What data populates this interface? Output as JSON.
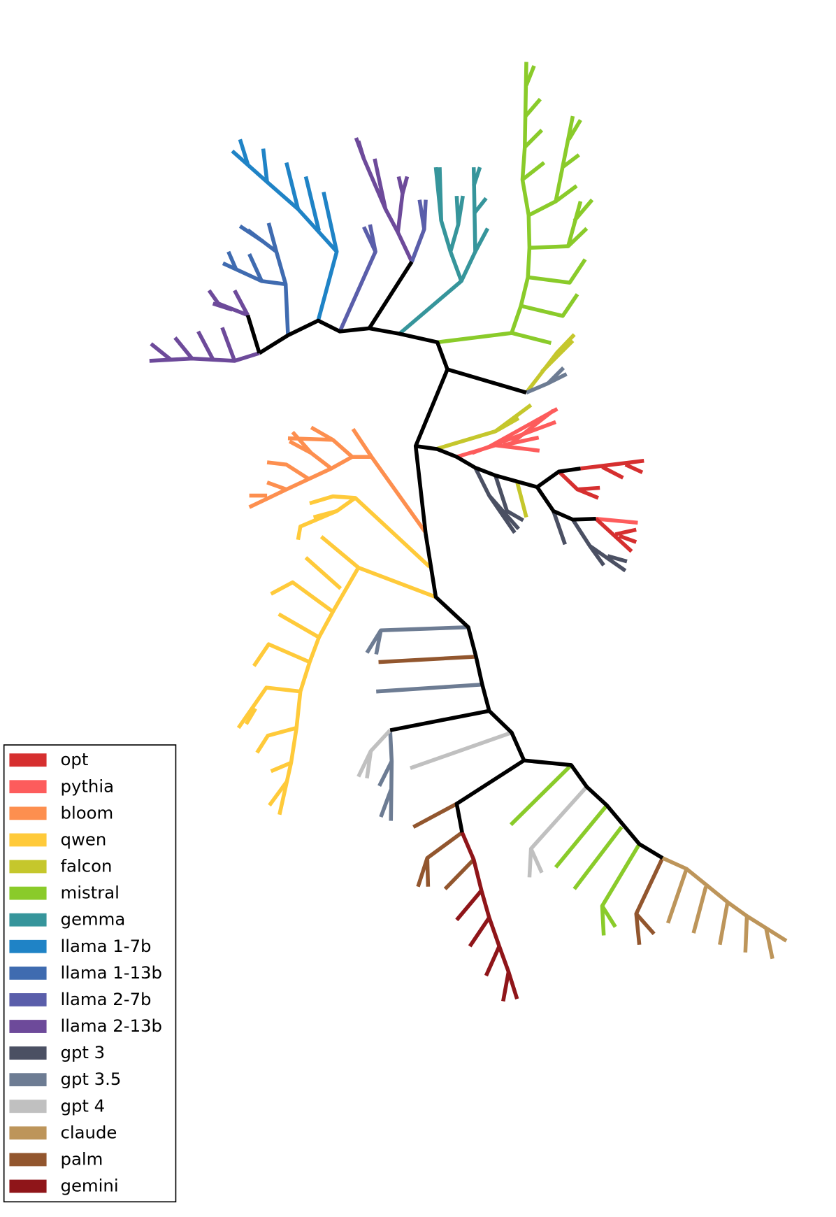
{
  "legend": {
    "items": [
      {
        "name": "opt",
        "color": "#d62f2f"
      },
      {
        "name": "pythia",
        "color": "#fd5c5c"
      },
      {
        "name": "bloom",
        "color": "#fd8f4f"
      },
      {
        "name": "qwen",
        "color": "#ffca3a"
      },
      {
        "name": "falcon",
        "color": "#c5c72c"
      },
      {
        "name": "mistral",
        "color": "#8acb2a"
      },
      {
        "name": "gemma",
        "color": "#36959b"
      },
      {
        "name": "llama 1-7b",
        "color": "#1f83c6"
      },
      {
        "name": "llama 1-13b",
        "color": "#3f6bb0"
      },
      {
        "name": "llama 2-7b",
        "color": "#5a5eaa"
      },
      {
        "name": "llama 2-13b",
        "color": "#6d4a9a"
      },
      {
        "name": "gpt 3",
        "color": "#4b5063"
      },
      {
        "name": "gpt 3.5",
        "color": "#6d7c93"
      },
      {
        "name": "gpt 4",
        "color": "#c0c0c0"
      },
      {
        "name": "claude",
        "color": "#bd955a"
      },
      {
        "name": "palm",
        "color": "#92562e"
      },
      {
        "name": "gemini",
        "color": "#8f1519"
      }
    ]
  }
}
